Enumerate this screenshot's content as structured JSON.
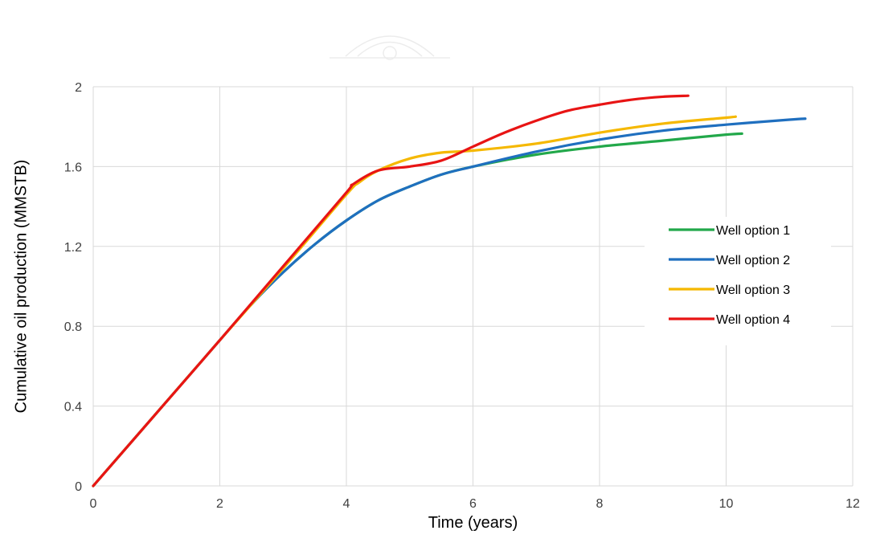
{
  "chart_data": {
    "type": "line",
    "title": "",
    "xlabel": "Time (years)",
    "ylabel": "Cumulative oil production (MMSTB)",
    "xlim": [
      0,
      12
    ],
    "ylim": [
      0,
      2
    ],
    "xticks": [
      "0",
      "2",
      "4",
      "6",
      "8",
      "10",
      "12"
    ],
    "yticks": [
      "0",
      "0.4",
      "0.8",
      "1.2",
      "1.6",
      "2"
    ],
    "grid": true,
    "legend_position": "right",
    "series": [
      {
        "name": "Well option 1",
        "color": "#22a84a",
        "x": [
          0,
          1,
          2,
          2.5,
          3,
          3.5,
          4,
          4.5,
          5,
          5.5,
          6,
          7,
          8,
          9,
          10,
          10.25
        ],
        "y": [
          0,
          0.365,
          0.73,
          0.91,
          1.07,
          1.21,
          1.33,
          1.43,
          1.5,
          1.56,
          1.6,
          1.66,
          1.7,
          1.73,
          1.76,
          1.765
        ]
      },
      {
        "name": "Well option 2",
        "color": "#1f6fbf",
        "x": [
          0,
          1,
          2,
          2.5,
          3,
          3.5,
          4,
          4.5,
          5,
          5.5,
          6,
          7,
          8,
          9,
          10,
          11,
          11.25
        ],
        "y": [
          0,
          0.365,
          0.73,
          0.91,
          1.07,
          1.21,
          1.33,
          1.43,
          1.5,
          1.56,
          1.6,
          1.675,
          1.735,
          1.78,
          1.81,
          1.835,
          1.84
        ]
      },
      {
        "name": "Well option 3",
        "color": "#f5b800",
        "x": [
          0,
          1,
          2,
          3,
          4,
          4.2,
          4.5,
          5,
          5.5,
          6,
          7,
          8,
          9,
          10,
          10.15
        ],
        "y": [
          0,
          0.365,
          0.73,
          1.09,
          1.46,
          1.52,
          1.58,
          1.64,
          1.67,
          1.68,
          1.715,
          1.77,
          1.815,
          1.845,
          1.85
        ]
      },
      {
        "name": "Well option 4",
        "color": "#e81414",
        "x": [
          0,
          1,
          2,
          3,
          4,
          4.1,
          4.5,
          5,
          5.5,
          6,
          6.5,
          7,
          7.5,
          8,
          8.5,
          9,
          9.4
        ],
        "y": [
          0,
          0.365,
          0.73,
          1.1,
          1.47,
          1.51,
          1.58,
          1.6,
          1.63,
          1.7,
          1.77,
          1.83,
          1.88,
          1.91,
          1.935,
          1.95,
          1.955
        ]
      }
    ]
  }
}
